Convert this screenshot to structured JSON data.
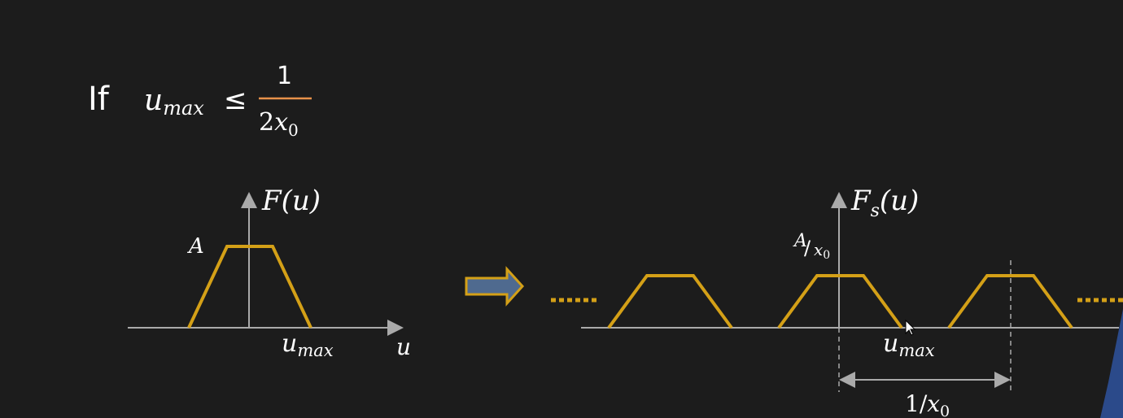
{
  "condition": {
    "if_word": "If",
    "lhs_var": "u",
    "lhs_sub": "max",
    "relation": "≤",
    "numerator": "1",
    "denominator_coef": "2",
    "denominator_var": "x",
    "denominator_sub": "0"
  },
  "left_plot": {
    "func_label": "F(u)",
    "amplitude_label": "A",
    "umax_var": "u",
    "umax_sub": "max",
    "axis_var": "u"
  },
  "right_plot": {
    "func_label_main": "F",
    "func_label_sub": "s",
    "func_label_arg": "(u)",
    "amp_num": "A",
    "amp_den_var": "x",
    "amp_den_sub": "0",
    "umax_var": "u",
    "umax_sub": "max",
    "period_num": "1/",
    "period_var": "x",
    "period_sub": "0"
  },
  "colors": {
    "trapezoid": "#d4a017",
    "condition": "#e8914a",
    "arrow_fill": "#4f6a8f",
    "arrow_outline": "#d4a017"
  }
}
